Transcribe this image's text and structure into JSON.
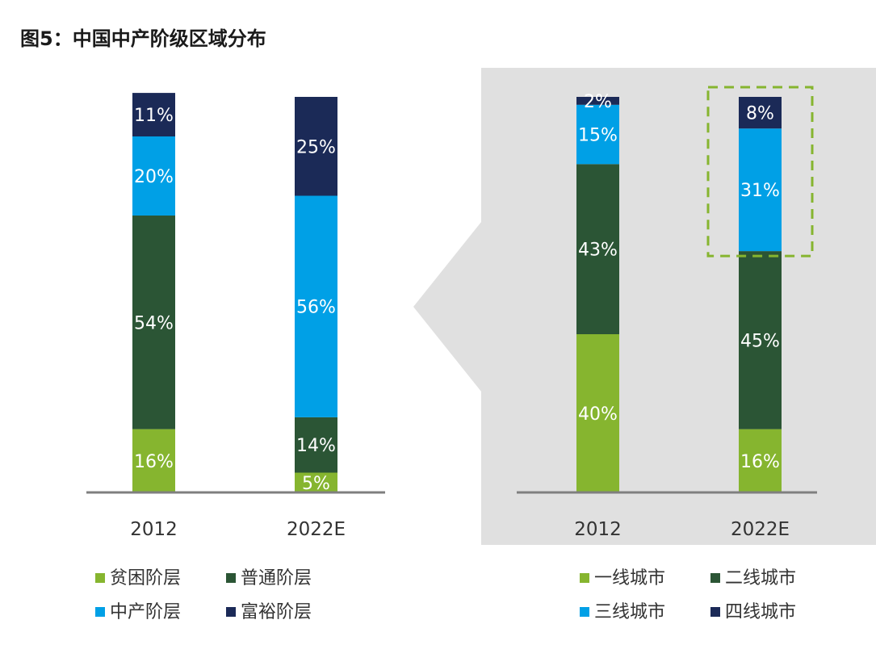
{
  "figure_title": "图5：中国中产阶级区域分布",
  "chart_data": [
    {
      "type": "bar",
      "stacked": true,
      "categories": [
        "2012",
        "2022E"
      ],
      "series": [
        {
          "name": "贫困阶层",
          "color": "#86B52F",
          "values": [
            16,
            5
          ]
        },
        {
          "name": "普通阶层",
          "color": "#2B5535",
          "values": [
            54,
            14
          ]
        },
        {
          "name": "中产阶层",
          "color": "#00A0E6",
          "values": [
            20,
            56
          ]
        },
        {
          "name": "富裕阶层",
          "color": "#1B2A57",
          "values": [
            11,
            25
          ]
        }
      ],
      "value_labels": [
        [
          "16%",
          "54%",
          "20%",
          "11%"
        ],
        [
          "5%",
          "14%",
          "56%",
          "25%"
        ]
      ],
      "ylim": [
        0,
        100
      ],
      "legend_position": "bottom"
    },
    {
      "type": "bar",
      "stacked": true,
      "categories": [
        "2012",
        "2022E"
      ],
      "series": [
        {
          "name": "一线城市",
          "color": "#86B52F",
          "values": [
            40,
            16
          ]
        },
        {
          "name": "二线城市",
          "color": "#2B5535",
          "values": [
            43,
            45
          ]
        },
        {
          "name": "三线城市",
          "color": "#00A0E6",
          "values": [
            15,
            31
          ]
        },
        {
          "name": "四线城市",
          "color": "#1B2A57",
          "values": [
            2,
            8
          ]
        }
      ],
      "value_labels": [
        [
          "40%",
          "43%",
          "15%",
          "2%"
        ],
        [
          "16%",
          "45%",
          "31%",
          "8%"
        ]
      ],
      "ylim": [
        0,
        100
      ],
      "legend_position": "bottom",
      "highlight": {
        "category": "2022E",
        "segments": [
          "三线城市",
          "四线城市"
        ],
        "color": "#86B52F",
        "style": "dashed"
      },
      "background_color": "#E0E0E0"
    }
  ]
}
